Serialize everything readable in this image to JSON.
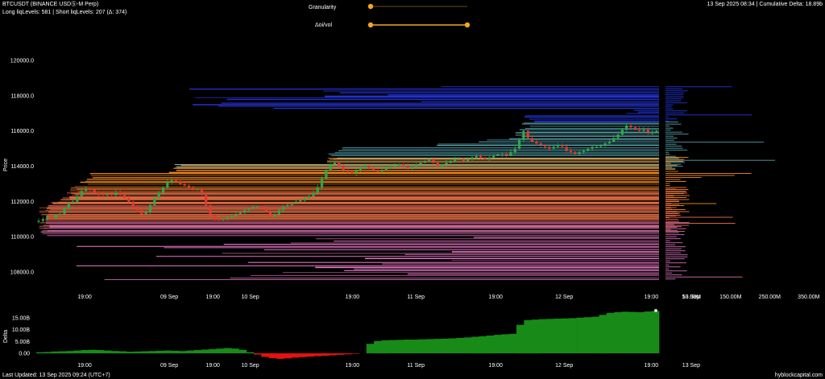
{
  "header": {
    "title": "BTCUSDT (BINANCE USDⓈ-M Perp)",
    "levels_text": "Long liqLevels: 581 | Short liqLevels: 207 (Δ: 374)",
    "status_text": "13 Sep 2025 08:34 | Cumulative Delta: 18.89b"
  },
  "controls": {
    "granularity_label": "Granularity",
    "granularity_value": 0.0,
    "oi_vol_label": "Δoi/vol",
    "oi_vol_range": [
      0.0,
      1.0
    ]
  },
  "footer": {
    "last_updated": "Last Updated: 13 Sep 2025 09:24 (UTC+7)",
    "watermark": "hyblockcapital.com"
  },
  "chart_data": [
    {
      "type": "line",
      "id": "price",
      "ylabel": "Price",
      "ylim": [
        107000,
        121500
      ],
      "y_ticks": [
        108000,
        110000,
        112000,
        114000,
        116000,
        118000,
        120000
      ],
      "y_tick_labels": [
        "108000.0",
        "110000.0",
        "112000.0",
        "114000.0",
        "116000.0",
        "118000.0",
        "120000.0"
      ],
      "x_ticks": [
        "19:00",
        "09 Sep",
        "19:00",
        "10 Sep",
        "19:00",
        "11 Sep",
        "19:00",
        "12 Sep",
        "19:00",
        "13 Sep"
      ],
      "x_tick_pos": [
        0.0,
        0.068,
        0.103,
        0.133,
        0.215,
        0.266,
        0.33,
        0.385,
        0.455,
        0.487
      ],
      "series": [
        {
          "values": [
            110900,
            111000,
            111100,
            111050,
            111250,
            111300,
            111600,
            111900,
            112000,
            112300,
            112600,
            112700,
            112650,
            112500,
            112400,
            112350,
            112400,
            112350,
            112500,
            112400,
            112200,
            112000,
            111700,
            111500,
            111300,
            111400,
            111800,
            112200,
            112500,
            112800,
            113100,
            113200,
            113150,
            113000,
            112900,
            112800,
            112700,
            112700,
            112400,
            111800,
            111200,
            111000,
            110950,
            111000,
            111100,
            111200,
            111300,
            111350,
            111500,
            111600,
            111700,
            111700,
            111600,
            111400,
            111200,
            111300,
            111500,
            111700,
            111800,
            111900,
            112000,
            112050,
            112200,
            112300,
            112500,
            112800,
            113300,
            113800,
            114100,
            114200,
            114000,
            113800,
            113700,
            113600,
            113800,
            113900,
            114000,
            113900,
            113800,
            113700,
            113800,
            113900,
            114000,
            114050,
            114100,
            114000,
            113900,
            114000,
            114100,
            114200,
            114300,
            114400,
            114200,
            114000,
            114100,
            114200,
            114300,
            114400,
            114400,
            114300,
            114400,
            114500,
            114600,
            114500,
            114400,
            114500,
            114600,
            114650,
            114700,
            114600,
            114800,
            115000,
            115500,
            116000,
            115600,
            115400,
            115300,
            115200,
            115100,
            115000,
            115100,
            115200,
            115100,
            114900,
            114800,
            114700,
            114800,
            114900,
            115000,
            115100,
            115100,
            115200,
            115300,
            115400,
            115600,
            115800,
            116100,
            116300,
            116200,
            116100,
            116000,
            116100,
            115900,
            115900,
            116000
          ]
        }
      ],
      "liquidation_bands": [
        {
          "name": "top blue",
          "from": 116500,
          "to": 118500,
          "color": "#2b3cff"
        },
        {
          "name": "teal",
          "from": 113800,
          "to": 116500,
          "color": "#5fb8c4"
        },
        {
          "name": "orange",
          "from": 111000,
          "to": 114500,
          "color": "#f28a1e"
        },
        {
          "name": "salmon",
          "from": 110300,
          "to": 112700,
          "color": "#f26b5b"
        },
        {
          "name": "pink",
          "from": 107500,
          "to": 110800,
          "color": "#f07ccc"
        }
      ],
      "volume_ticks": [
        50,
        150,
        250,
        350
      ],
      "volume_tick_labels": [
        "50.00M",
        "150.00M",
        "250.00M",
        "350.00M"
      ]
    },
    {
      "type": "area",
      "id": "delta",
      "ylabel": "Delta",
      "ylim": [
        -3,
        19
      ],
      "y_ticks": [
        0,
        5,
        10,
        15
      ],
      "y_tick_labels": [
        "0.00",
        "5.00B",
        "10.00B",
        "15.00B"
      ],
      "x_ticks": [
        "19:00",
        "09 Sep",
        "19:00",
        "10 Sep",
        "19:00",
        "11 Sep",
        "19:00",
        "12 Sep",
        "19:00",
        "13 Sep"
      ],
      "x_tick_pos": [
        0.0,
        0.068,
        0.103,
        0.133,
        0.215,
        0.266,
        0.33,
        0.385,
        0.455,
        0.487
      ],
      "values": [
        0.5,
        0.6,
        0.8,
        0.9,
        1.0,
        1.2,
        1.4,
        1.5,
        1.4,
        1.2,
        1.0,
        0.9,
        0.7,
        0.8,
        0.9,
        1.0,
        1.1,
        1.2,
        1.1,
        1.0,
        1.2,
        1.4,
        1.6,
        1.8,
        2.0,
        2.2,
        2.0,
        1.5,
        0.5,
        -0.5,
        -1.5,
        -2.0,
        -2.3,
        -2.1,
        -1.8,
        -1.6,
        -1.4,
        -1.2,
        -1.0,
        -0.8,
        -0.6,
        -0.4,
        -0.2,
        0.0,
        4.0,
        5.2,
        5.5,
        5.6,
        5.7,
        5.8,
        5.8,
        5.9,
        6.0,
        6.1,
        6.2,
        6.3,
        6.5,
        6.7,
        7.0,
        7.2,
        7.5,
        7.8,
        8.0,
        8.2,
        12.0,
        14.0,
        14.2,
        14.4,
        14.5,
        14.6,
        14.7,
        14.8,
        15.0,
        15.2,
        15.4,
        16.2,
        17.0,
        17.3,
        17.5,
        17.4,
        17.3,
        17.6,
        17.8,
        18.0
      ]
    }
  ],
  "colors": {
    "background": "#000000",
    "candle_up": "#2ea84a",
    "candle_down": "#e23a2e",
    "slider_accent": "#f5a623",
    "delta_positive": "#188a18",
    "delta_negative": "#e81010",
    "separator": "#bbbbbb"
  }
}
